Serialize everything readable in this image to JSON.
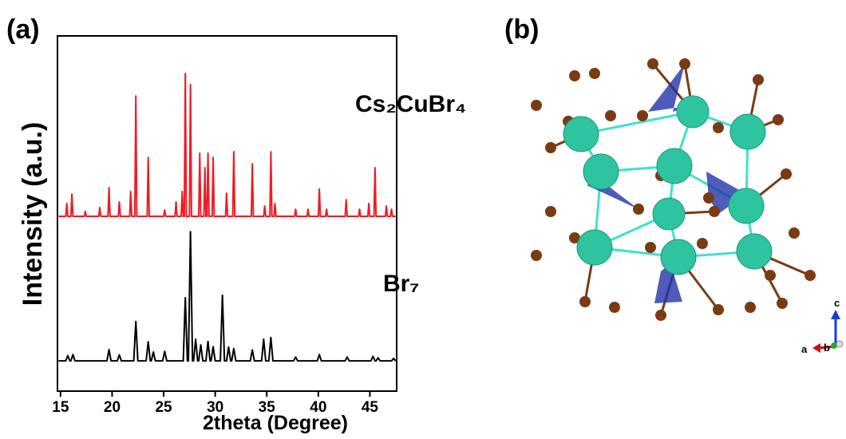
{
  "chart_data": {
    "type": "line",
    "xlabel": "2theta (Degree)",
    "ylabel": "Intensity (a.u.)",
    "xlim": [
      14.7,
      47.6
    ],
    "xticks": [
      15,
      20,
      25,
      30,
      35,
      40,
      45
    ],
    "ylim": [
      0,
      100
    ],
    "series": [
      {
        "name": "Cs₂CuBr₄",
        "color": "#ee1c25",
        "x": [
          14.8,
          15.5,
          15.6,
          15.7,
          16.0,
          16.1,
          16.2,
          17.3,
          17.4,
          17.5,
          18.7,
          18.8,
          18.9,
          19.6,
          19.7,
          19.8,
          20.6,
          20.7,
          20.8,
          21.7,
          21.8,
          21.9,
          22.2,
          22.3,
          22.4,
          23.4,
          23.5,
          23.6,
          25.0,
          25.1,
          25.2,
          26.1,
          26.2,
          26.3,
          26.7,
          26.8,
          26.9,
          27.0,
          27.1,
          27.2,
          27.5,
          27.6,
          27.7,
          28.4,
          28.5,
          28.6,
          28.9,
          29.0,
          29.1,
          29.2,
          29.3,
          29.4,
          29.7,
          29.8,
          29.9,
          31.0,
          31.1,
          31.2,
          31.7,
          31.8,
          31.9,
          33.5,
          33.6,
          33.7,
          34.7,
          34.8,
          34.9,
          35.3,
          35.4,
          35.5,
          35.7,
          35.8,
          35.9,
          37.7,
          37.8,
          37.9,
          38.9,
          39.0,
          39.1,
          40.0,
          40.1,
          40.2,
          40.7,
          40.8,
          40.9,
          42.6,
          42.7,
          42.8,
          43.9,
          44.0,
          44.1,
          44.8,
          44.9,
          45.0,
          45.4,
          45.5,
          45.6,
          46.5,
          46.6,
          46.7,
          47.0,
          47.1,
          47.2,
          47.5
        ],
        "values": [
          49.2,
          49.2,
          52.8,
          49.2,
          49.2,
          55.5,
          49.2,
          49.2,
          50.6,
          49.2,
          49.2,
          51.7,
          49.2,
          49.2,
          57.3,
          49.2,
          49.2,
          53.3,
          49.2,
          49.2,
          56.2,
          49.2,
          49.2,
          83.1,
          49.2,
          49.2,
          65.8,
          49.2,
          49.2,
          51.0,
          49.2,
          49.2,
          53.3,
          49.2,
          49.2,
          56.2,
          49.2,
          49.2,
          89.4,
          49.2,
          49.2,
          86.3,
          49.2,
          49.2,
          67.0,
          49.2,
          49.2,
          62.9,
          49.2,
          49.2,
          67.0,
          49.2,
          49.2,
          65.8,
          49.2,
          49.2,
          55.7,
          49.2,
          49.2,
          67.4,
          49.2,
          49.2,
          64.0,
          49.2,
          49.2,
          52.1,
          49.2,
          49.2,
          67.4,
          49.2,
          49.2,
          52.8,
          49.2,
          49.2,
          51.2,
          49.2,
          49.2,
          51.2,
          49.2,
          49.2,
          56.9,
          49.2,
          49.2,
          51.2,
          49.2,
          49.2,
          53.9,
          49.2,
          49.2,
          51.2,
          49.2,
          49.2,
          52.8,
          49.2,
          49.2,
          62.9,
          49.2,
          49.2,
          52.1,
          49.2,
          49.2,
          51.2,
          49.2,
          49.2
        ]
      },
      {
        "name": "Br₇",
        "color": "#000000",
        "x": [
          14.8,
          15.5,
          15.7,
          15.9,
          16.0,
          16.2,
          16.4,
          19.5,
          19.7,
          19.9,
          20.5,
          20.7,
          20.9,
          22.1,
          22.3,
          22.5,
          23.3,
          23.5,
          23.7,
          23.8,
          24.0,
          24.2,
          24.9,
          25.1,
          25.3,
          26.9,
          27.1,
          27.3,
          27.4,
          27.6,
          27.8,
          27.9,
          28.1,
          28.3,
          28.4,
          28.6,
          28.8,
          29.1,
          29.3,
          29.5,
          29.6,
          29.8,
          30.0,
          30.5,
          30.7,
          30.9,
          31.1,
          31.3,
          31.5,
          31.6,
          31.8,
          32.0,
          33.4,
          33.6,
          33.8,
          34.5,
          34.7,
          34.9,
          35.2,
          35.4,
          35.6,
          37.6,
          37.8,
          38.0,
          39.9,
          40.1,
          40.3,
          42.6,
          42.8,
          43.0,
          45.1,
          45.3,
          45.5,
          45.6,
          45.8,
          46.0,
          47.1,
          47.3,
          47.5
        ],
        "values": [
          8.5,
          8.5,
          10.0,
          8.5,
          8.5,
          10.3,
          8.5,
          8.5,
          11.7,
          8.5,
          8.5,
          10.2,
          8.5,
          8.5,
          19.6,
          8.5,
          8.5,
          13.9,
          8.5,
          8.5,
          11.0,
          8.5,
          8.5,
          11.2,
          8.5,
          8.5,
          26.3,
          8.5,
          8.5,
          44.9,
          8.5,
          8.5,
          14.6,
          8.5,
          8.5,
          13.0,
          8.5,
          8.5,
          14.0,
          8.5,
          8.5,
          12.5,
          8.5,
          8.5,
          27.0,
          8.5,
          8.5,
          12.4,
          8.5,
          8.5,
          12.0,
          8.5,
          8.5,
          11.6,
          8.5,
          8.5,
          14.6,
          8.5,
          8.5,
          15.1,
          8.5,
          8.5,
          9.6,
          8.5,
          8.5,
          10.3,
          8.5,
          8.5,
          9.6,
          8.5,
          8.5,
          9.8,
          8.5,
          8.5,
          9.4,
          8.5,
          8.5,
          9.2,
          8.5
        ]
      }
    ]
  },
  "panel_labels": [
    "(a)",
    "(b)"
  ],
  "structure_axes": {
    "c": "c",
    "a": "a",
    "b": "b"
  }
}
